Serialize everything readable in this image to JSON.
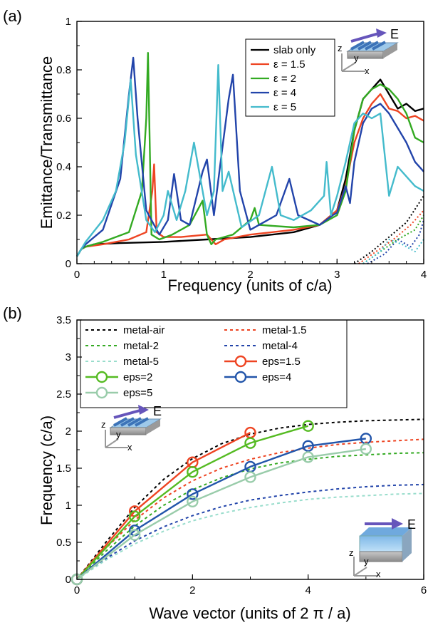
{
  "chart_data": [
    {
      "type": "line",
      "panel_label": "(a)",
      "xlabel": "Frequency (units of c/a)",
      "ylabel": "Emittance/Transmittance",
      "xlim": [
        0,
        4
      ],
      "ylim": [
        0,
        1
      ],
      "xticks": [
        "0",
        "1",
        "2",
        "3",
        "4"
      ],
      "yticks": [
        "0",
        "0.2",
        "0.4",
        "0.6",
        "0.8",
        "1"
      ],
      "grid": false,
      "legend_position": "top-right",
      "inset_label": "E",
      "axis_letters": [
        "z",
        "y",
        "x"
      ],
      "legend": [
        {
          "label": "slab only",
          "color": "#000000"
        },
        {
          "label": "ε = 1.5",
          "color": "#ee4422"
        },
        {
          "label": "ε = 2",
          "color": "#33aa22"
        },
        {
          "label": "ε = 4",
          "color": "#2244aa"
        },
        {
          "label": "ε = 5",
          "color": "#44bbcc"
        }
      ],
      "series": [
        {
          "name": "slab only",
          "color": "#000000",
          "style": "solid",
          "x": [
            0,
            0.05,
            0.1,
            0.2,
            0.5,
            1.0,
            1.5,
            2.0,
            2.5,
            2.8,
            3.0,
            3.1,
            3.2,
            3.3,
            3.4,
            3.5,
            3.6,
            3.7,
            3.8,
            3.9,
            4.0
          ],
          "y": [
            0.03,
            0.06,
            0.07,
            0.08,
            0.085,
            0.09,
            0.1,
            0.11,
            0.13,
            0.16,
            0.22,
            0.35,
            0.55,
            0.68,
            0.72,
            0.76,
            0.7,
            0.64,
            0.66,
            0.63,
            0.64
          ]
        },
        {
          "name": "ε = 1.5",
          "color": "#ee4422",
          "style": "solid",
          "x": [
            0,
            0.05,
            0.1,
            0.3,
            0.6,
            0.8,
            0.87,
            0.89,
            0.92,
            1.0,
            1.2,
            1.5,
            1.6,
            1.7,
            2.0,
            2.5,
            2.8,
            3.0,
            3.1,
            3.2,
            3.3,
            3.4,
            3.5,
            3.6,
            3.7,
            3.8,
            3.9,
            4.0
          ],
          "y": [
            0.03,
            0.06,
            0.07,
            0.08,
            0.1,
            0.13,
            0.3,
            0.41,
            0.13,
            0.11,
            0.11,
            0.12,
            0.08,
            0.1,
            0.12,
            0.14,
            0.16,
            0.22,
            0.32,
            0.5,
            0.6,
            0.66,
            0.7,
            0.64,
            0.63,
            0.6,
            0.61,
            0.59
          ]
        },
        {
          "name": "ε = 2",
          "color": "#33aa22",
          "style": "solid",
          "x": [
            0,
            0.05,
            0.1,
            0.3,
            0.6,
            0.75,
            0.8,
            0.82,
            0.86,
            0.95,
            1.1,
            1.3,
            1.45,
            1.5,
            1.55,
            1.6,
            1.8,
            2.0,
            2.05,
            2.1,
            2.5,
            2.8,
            3.0,
            3.1,
            3.2,
            3.3,
            3.4,
            3.5,
            3.6,
            3.7,
            3.8,
            3.9,
            4.0
          ],
          "y": [
            0.03,
            0.06,
            0.07,
            0.09,
            0.13,
            0.3,
            0.6,
            0.87,
            0.12,
            0.1,
            0.12,
            0.16,
            0.26,
            0.12,
            0.08,
            0.1,
            0.12,
            0.18,
            0.23,
            0.16,
            0.15,
            0.16,
            0.2,
            0.3,
            0.55,
            0.68,
            0.72,
            0.74,
            0.72,
            0.68,
            0.62,
            0.52,
            0.5
          ]
        },
        {
          "name": "ε = 4",
          "color": "#2244aa",
          "style": "solid",
          "x": [
            0,
            0.05,
            0.1,
            0.3,
            0.5,
            0.6,
            0.65,
            0.7,
            0.8,
            0.95,
            1.05,
            1.12,
            1.2,
            1.3,
            1.45,
            1.5,
            1.58,
            1.65,
            1.75,
            1.8,
            1.88,
            2.0,
            2.3,
            2.45,
            2.55,
            2.8,
            2.95,
            3.0,
            3.1,
            3.15,
            3.2,
            3.3,
            3.4,
            3.5,
            3.6,
            3.7,
            3.8,
            3.9,
            4.0
          ],
          "y": [
            0.03,
            0.06,
            0.08,
            0.14,
            0.35,
            0.7,
            0.85,
            0.6,
            0.22,
            0.12,
            0.18,
            0.37,
            0.18,
            0.16,
            0.38,
            0.43,
            0.2,
            0.4,
            0.68,
            0.78,
            0.3,
            0.14,
            0.2,
            0.35,
            0.2,
            0.16,
            0.2,
            0.21,
            0.32,
            0.25,
            0.42,
            0.58,
            0.64,
            0.66,
            0.62,
            0.56,
            0.5,
            0.42,
            0.38
          ]
        },
        {
          "name": "ε = 5",
          "color": "#44bbcc",
          "style": "solid",
          "x": [
            0,
            0.05,
            0.1,
            0.3,
            0.45,
            0.55,
            0.62,
            0.68,
            0.8,
            0.9,
            1.0,
            1.05,
            1.15,
            1.25,
            1.35,
            1.4,
            1.5,
            1.58,
            1.63,
            1.68,
            1.75,
            1.9,
            2.1,
            2.25,
            2.35,
            2.5,
            2.7,
            2.85,
            2.88,
            2.93,
            3.0,
            3.1,
            3.2,
            3.3,
            3.4,
            3.5,
            3.6,
            3.7,
            3.8,
            3.9,
            4.0
          ],
          "y": [
            0.03,
            0.06,
            0.09,
            0.18,
            0.3,
            0.5,
            0.76,
            0.45,
            0.18,
            0.13,
            0.2,
            0.3,
            0.18,
            0.3,
            0.5,
            0.4,
            0.2,
            0.3,
            0.82,
            0.3,
            0.38,
            0.15,
            0.2,
            0.4,
            0.2,
            0.18,
            0.22,
            0.28,
            0.42,
            0.2,
            0.28,
            0.42,
            0.58,
            0.62,
            0.6,
            0.62,
            0.28,
            0.4,
            0.36,
            0.32,
            0.3
          ]
        },
        {
          "name": "slab only",
          "color": "#000000",
          "style": "dotted",
          "x": [
            3.2,
            3.4,
            3.6,
            3.8,
            4.0
          ],
          "y": [
            0,
            0.05,
            0.11,
            0.17,
            0.28
          ]
        },
        {
          "name": "ε = 1.5",
          "color": "#ee4422",
          "style": "dotted",
          "x": [
            3.25,
            3.45,
            3.65,
            3.85,
            4.0
          ],
          "y": [
            0,
            0.05,
            0.1,
            0.16,
            0.22
          ]
        },
        {
          "name": "ε = 2",
          "color": "#33aa22",
          "style": "dotted",
          "x": [
            3.3,
            3.5,
            3.7,
            3.9,
            4.0
          ],
          "y": [
            0,
            0.05,
            0.1,
            0.14,
            0.2
          ]
        },
        {
          "name": "ε = 4",
          "color": "#2244aa",
          "style": "dotted",
          "x": [
            3.35,
            3.55,
            3.7,
            3.85,
            3.95,
            4.0
          ],
          "y": [
            0,
            0.04,
            0.1,
            0.07,
            0.12,
            0.18
          ]
        },
        {
          "name": "ε = 5",
          "color": "#44bbcc",
          "style": "dotted",
          "x": [
            3.3,
            3.5,
            3.6,
            3.75,
            3.9,
            4.0
          ],
          "y": [
            0,
            0.05,
            0.1,
            0.08,
            0.05,
            0.1
          ]
        }
      ]
    },
    {
      "type": "line",
      "panel_label": "(b)",
      "xlabel": "Wave vector (units of 2 π / a)",
      "ylabel": "Frequency (c/a)",
      "xlim": [
        0,
        6
      ],
      "ylim": [
        0,
        3.5
      ],
      "xticks": [
        "0",
        "2",
        "4",
        "6"
      ],
      "yticks": [
        "0",
        "0.5",
        "1",
        "1.5",
        "2",
        "2.5",
        "3",
        "3.5"
      ],
      "grid": false,
      "legend_position": "top",
      "inset_label": "E",
      "axis_letters": [
        "z",
        "y",
        "x"
      ],
      "legend": [
        {
          "label": "metal-air",
          "color": "#000000",
          "style": "dashed"
        },
        {
          "label": "metal-1.5",
          "color": "#ee4422",
          "style": "dashed"
        },
        {
          "label": "metal-2",
          "color": "#33aa22",
          "style": "dashed"
        },
        {
          "label": "metal-4",
          "color": "#2244aa",
          "style": "dashed"
        },
        {
          "label": "metal-5",
          "color": "#99ddcc",
          "style": "dashed"
        },
        {
          "label": "eps=1.5",
          "color": "#ee4422",
          "style": "marker"
        },
        {
          "label": "eps=2",
          "color": "#55bb22",
          "style": "marker"
        },
        {
          "label": "eps=4",
          "color": "#2255aa",
          "style": "marker"
        },
        {
          "label": "eps=5",
          "color": "#99ccaa",
          "style": "marker"
        }
      ],
      "series": [
        {
          "name": "metal-air",
          "color": "#000000",
          "style": "dashed",
          "x": [
            0,
            0.5,
            1,
            1.5,
            2,
            2.5,
            3,
            3.5,
            4,
            4.5,
            5,
            5.5,
            6
          ],
          "y": [
            0,
            0.5,
            0.97,
            1.35,
            1.63,
            1.83,
            1.96,
            2.04,
            2.09,
            2.12,
            2.14,
            2.15,
            2.16
          ]
        },
        {
          "name": "metal-1.5",
          "color": "#ee4422",
          "style": "dashed",
          "x": [
            0,
            0.5,
            1,
            1.5,
            2,
            2.5,
            3,
            3.5,
            4,
            4.5,
            5,
            5.5,
            6
          ],
          "y": [
            0,
            0.42,
            0.8,
            1.1,
            1.33,
            1.5,
            1.62,
            1.71,
            1.77,
            1.82,
            1.85,
            1.87,
            1.89
          ]
        },
        {
          "name": "metal-2",
          "color": "#33aa22",
          "style": "dashed",
          "x": [
            0,
            0.5,
            1,
            1.5,
            2,
            2.5,
            3,
            3.5,
            4,
            4.5,
            5,
            5.5,
            6
          ],
          "y": [
            0,
            0.38,
            0.72,
            1.0,
            1.21,
            1.37,
            1.49,
            1.57,
            1.62,
            1.66,
            1.68,
            1.7,
            1.71
          ]
        },
        {
          "name": "metal-4",
          "color": "#2244aa",
          "style": "dashed",
          "x": [
            0,
            0.5,
            1,
            1.5,
            2,
            2.5,
            3,
            3.5,
            4,
            4.5,
            5,
            5.5,
            6
          ],
          "y": [
            0,
            0.28,
            0.52,
            0.71,
            0.86,
            0.98,
            1.07,
            1.13,
            1.18,
            1.22,
            1.25,
            1.27,
            1.28
          ]
        },
        {
          "name": "metal-5",
          "color": "#99ddcc",
          "style": "dashed",
          "x": [
            0,
            0.5,
            1,
            1.5,
            2,
            2.5,
            3,
            3.5,
            4,
            4.5,
            5,
            5.5,
            6
          ],
          "y": [
            0,
            0.26,
            0.48,
            0.65,
            0.79,
            0.89,
            0.97,
            1.03,
            1.08,
            1.11,
            1.13,
            1.15,
            1.16
          ]
        },
        {
          "name": "eps=1.5",
          "color": "#ee4422",
          "style": "solid-marker",
          "x": [
            0,
            1,
            2,
            3
          ],
          "y": [
            0,
            0.92,
            1.58,
            1.98
          ]
        },
        {
          "name": "eps=2",
          "color": "#55bb22",
          "style": "solid-marker",
          "x": [
            0,
            1,
            2,
            3,
            4
          ],
          "y": [
            0,
            0.85,
            1.45,
            1.84,
            2.07
          ]
        },
        {
          "name": "eps=4",
          "color": "#2255aa",
          "style": "solid-marker",
          "x": [
            0,
            1,
            2,
            3,
            4,
            5
          ],
          "y": [
            0,
            0.66,
            1.15,
            1.52,
            1.8,
            1.9
          ]
        },
        {
          "name": "eps=5",
          "color": "#99ccaa",
          "style": "solid-marker",
          "x": [
            0,
            1,
            2,
            3,
            4,
            5
          ],
          "y": [
            0,
            0.6,
            1.05,
            1.38,
            1.65,
            1.76
          ]
        }
      ]
    }
  ]
}
